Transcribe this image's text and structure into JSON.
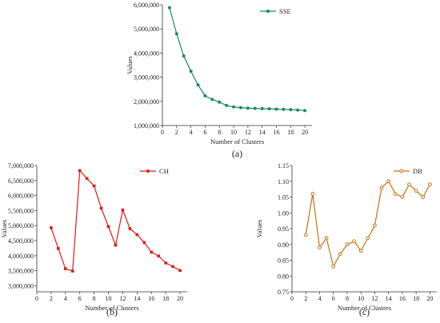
{
  "chart_data": [
    {
      "type": "line",
      "panel_label": "(a)",
      "xlabel": "Number of Clusters",
      "ylabel": "Values",
      "xlim": [
        0,
        21
      ],
      "xticks": [
        0,
        2,
        4,
        6,
        8,
        10,
        12,
        14,
        16,
        18,
        20
      ],
      "ylim": [
        1000000,
        6000000
      ],
      "yticks": [
        1000000,
        2000000,
        3000000,
        4000000,
        5000000,
        6000000
      ],
      "ytick_labels": [
        "1,000,000",
        "2,000,000",
        "3,000,000",
        "4,000,000",
        "5,000,000",
        "6,000,000"
      ],
      "legend": "top-right",
      "marker": "circle",
      "series": [
        {
          "name": "SSE",
          "color": "#1a8c5e",
          "x": [
            1,
            2,
            3,
            4,
            5,
            6,
            7,
            8,
            9,
            10,
            11,
            12,
            13,
            14,
            15,
            16,
            17,
            18,
            19,
            20
          ],
          "y": [
            5880000,
            4800000,
            3880000,
            3250000,
            2680000,
            2230000,
            2080000,
            1970000,
            1830000,
            1770000,
            1740000,
            1720000,
            1710000,
            1700000,
            1690000,
            1680000,
            1670000,
            1660000,
            1640000,
            1620000
          ]
        }
      ]
    },
    {
      "type": "line",
      "panel_label": "(b)",
      "xlabel": "Number of Clusters",
      "ylabel": "Values",
      "xlim": [
        0,
        21
      ],
      "xticks": [
        0,
        2,
        4,
        6,
        8,
        10,
        12,
        14,
        16,
        18,
        20
      ],
      "ylim": [
        2800000,
        7000000
      ],
      "yticks": [
        3000000,
        3500000,
        4000000,
        4500000,
        5000000,
        5500000,
        6000000,
        6500000,
        7000000
      ],
      "ytick_labels": [
        "3,000,000",
        "3,500,000",
        "4,000,000",
        "4,500,000",
        "5,000,000",
        "5,500,000",
        "6,000,000",
        "6,500,000",
        "7,000,000"
      ],
      "legend": "top-right",
      "marker": "square",
      "series": [
        {
          "name": "CH",
          "color": "#e01a1a",
          "x": [
            2,
            3,
            4,
            5,
            6,
            7,
            8,
            9,
            10,
            11,
            12,
            13,
            14,
            15,
            16,
            17,
            18,
            19,
            20
          ],
          "y": [
            4930000,
            4240000,
            3570000,
            3490000,
            6830000,
            6570000,
            6320000,
            5580000,
            4970000,
            4350000,
            5520000,
            4900000,
            4700000,
            4440000,
            4120000,
            3990000,
            3760000,
            3640000,
            3510000
          ]
        }
      ]
    },
    {
      "type": "line",
      "panel_label": "(c)",
      "xlabel": "Number of Clusters",
      "ylabel": "Values",
      "xlim": [
        0,
        21
      ],
      "xticks": [
        0,
        2,
        4,
        6,
        8,
        10,
        12,
        14,
        16,
        18,
        20
      ],
      "ylim": [
        0.75,
        1.15
      ],
      "yticks": [
        0.75,
        0.8,
        0.85,
        0.9,
        0.95,
        1.0,
        1.05,
        1.1,
        1.15
      ],
      "ytick_labels": [
        "0.75",
        "0.80",
        "0.85",
        "0.90",
        "0.95",
        "1.00",
        "1.05",
        "1.10",
        "1.15"
      ],
      "legend": "top-right",
      "marker": "circle",
      "series": [
        {
          "name": "DB",
          "color": "#c8720e",
          "x": [
            2,
            3,
            4,
            5,
            6,
            7,
            8,
            9,
            10,
            11,
            12,
            13,
            14,
            15,
            16,
            17,
            18,
            19,
            20
          ],
          "y": [
            0.93,
            1.06,
            0.89,
            0.92,
            0.83,
            0.87,
            0.9,
            0.91,
            0.88,
            0.92,
            0.96,
            1.08,
            1.1,
            1.06,
            1.05,
            1.09,
            1.07,
            1.05,
            1.09
          ]
        }
      ]
    }
  ]
}
